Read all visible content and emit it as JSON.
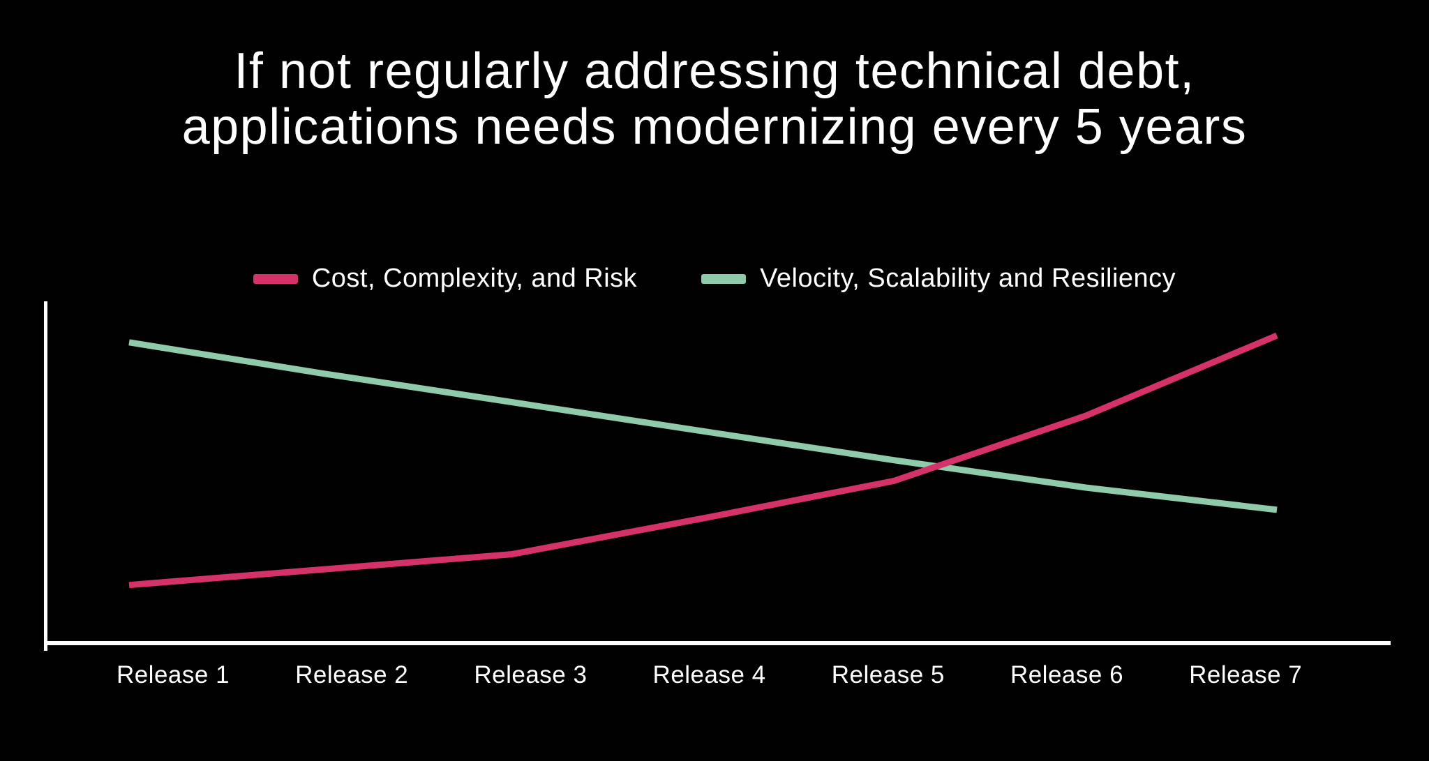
{
  "title": {
    "line1": "If not regularly addressing technical debt,",
    "line2": "applications needs modernizing every 5 years"
  },
  "colors": {
    "background": "#010101",
    "text": "#ffffff",
    "axis": "#ffffff",
    "cost_line": "#d5326b",
    "velocity_line": "#8fcbaa"
  },
  "chart_data": {
    "type": "line",
    "title": "If not regularly addressing technical debt, applications needs modernizing every 5 years",
    "categories": [
      "Release 1",
      "Release 2",
      "Release 3",
      "Release 4",
      "Release 5",
      "Release 6",
      "Release 7"
    ],
    "series": [
      {
        "name": "Cost, Complexity, and Risk",
        "color": "#d5326b",
        "values": [
          17,
          21.5,
          26,
          36.5,
          47.5,
          66.5,
          90
        ]
      },
      {
        "name": "Velocity, Scalability and Resiliency",
        "color": "#8fcbaa",
        "values": [
          88,
          79,
          70.5,
          62,
          53.5,
          45.5,
          39
        ]
      }
    ],
    "xlabel": "",
    "ylabel": "",
    "ylim": [
      0,
      100
    ],
    "grid": false,
    "y_tick_labels": "none",
    "x_tick_labels": "visible",
    "legend_position": "top",
    "line_width": 9
  }
}
